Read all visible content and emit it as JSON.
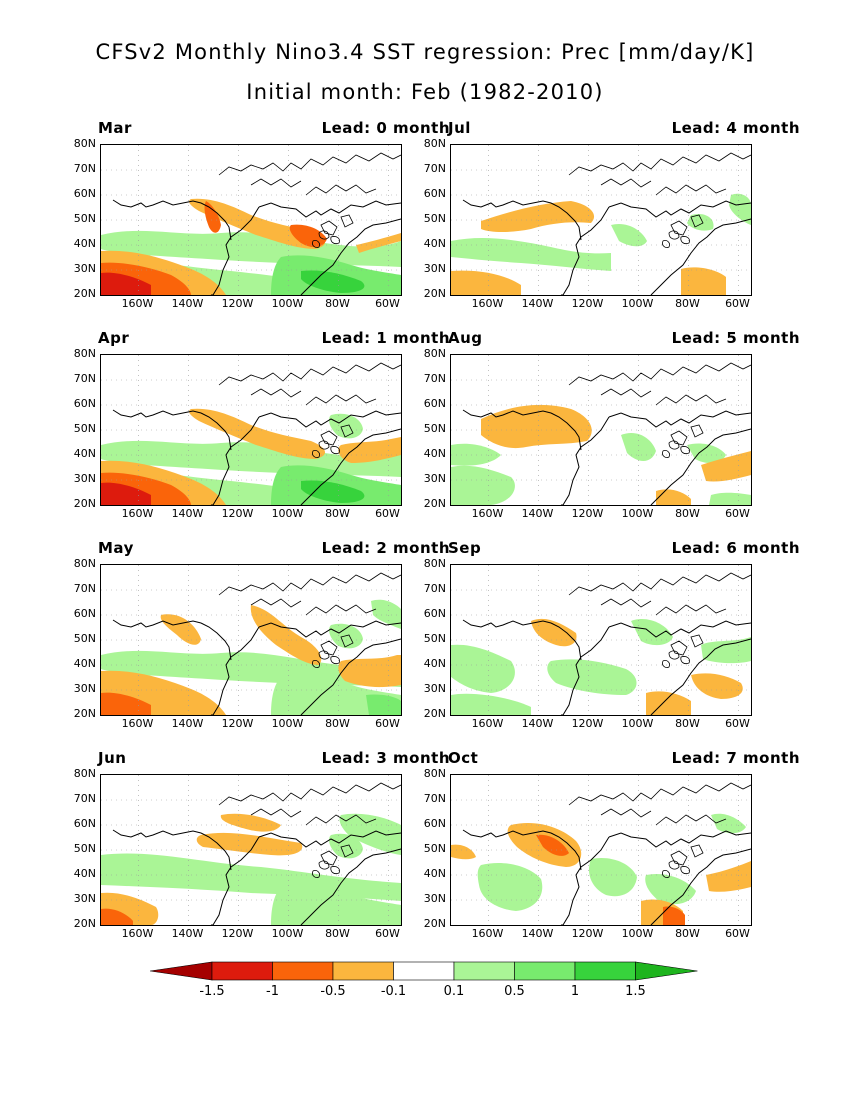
{
  "title_line1": "CFSv2 Monthly Nino3.4 SST regression: Prec [mm/day/K]",
  "title_line2": "Initial month: Feb (1982-2010)",
  "lat_labels": [
    "80N",
    "70N",
    "60N",
    "50N",
    "40N",
    "30N",
    "20N"
  ],
  "lon_labels": [
    "160W",
    "140W",
    "120W",
    "100W",
    "80W",
    "60W"
  ],
  "panels": [
    {
      "month": "Mar",
      "lead": "Lead: 0 month",
      "strength": 1.0
    },
    {
      "month": "Jul",
      "lead": "Lead: 4 month",
      "strength": 0.55
    },
    {
      "month": "Apr",
      "lead": "Lead: 1 month",
      "strength": 0.9
    },
    {
      "month": "Aug",
      "lead": "Lead: 5 month",
      "strength": 0.5
    },
    {
      "month": "May",
      "lead": "Lead: 2 month",
      "strength": 0.75
    },
    {
      "month": "Sep",
      "lead": "Lead: 6 month",
      "strength": 0.5
    },
    {
      "month": "Jun",
      "lead": "Lead: 3 month",
      "strength": 0.6
    },
    {
      "month": "Oct",
      "lead": "Lead: 7 month",
      "strength": 0.55
    }
  ],
  "colorbar": {
    "labels": [
      "-1.5",
      "-1",
      "-0.5",
      "-0.1",
      "0.1",
      "0.5",
      "1",
      "1.5"
    ],
    "colors": [
      "#a50000",
      "#dd1b0d",
      "#fa640a",
      "#fbb63e",
      "#ffffff",
      "#aaf596",
      "#78eb6e",
      "#37d33c",
      "#1eb41e"
    ]
  },
  "colors": {
    "coast": "#000000",
    "grid": "#999999"
  }
}
